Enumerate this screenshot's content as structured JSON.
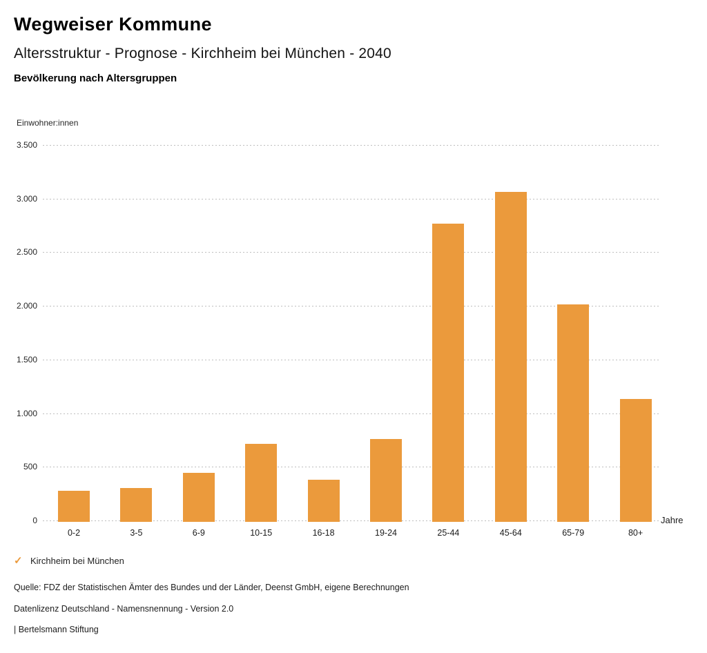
{
  "header": {
    "title": "Wegweiser Kommune",
    "subtitle": "Altersstruktur - Prognose - Kirchheim bei München - 2040",
    "subheading": "Bevölkerung nach Altersgruppen"
  },
  "chart_data": {
    "type": "bar",
    "title": "Bevölkerung nach Altersgruppen",
    "categories": [
      "0-2",
      "3-5",
      "6-9",
      "10-15",
      "16-18",
      "19-24",
      "25-44",
      "45-64",
      "65-79",
      "80+"
    ],
    "values": [
      290,
      315,
      460,
      730,
      390,
      770,
      2780,
      3075,
      2025,
      1145
    ],
    "series_name": "Kirchheim bei München",
    "xlabel": "Jahre",
    "ylabel": "Einwohner:innen",
    "ylim": [
      0,
      3500
    ],
    "ytick_step": 500,
    "yticks": [
      {
        "value": 3500,
        "label": "3.500"
      },
      {
        "value": 3000,
        "label": "3.000"
      },
      {
        "value": 2500,
        "label": "2.500"
      },
      {
        "value": 2000,
        "label": "2.000"
      },
      {
        "value": 1500,
        "label": "1.500"
      },
      {
        "value": 1000,
        "label": "1.000"
      },
      {
        "value": 500,
        "label": "500"
      },
      {
        "value": 0,
        "label": "0"
      }
    ],
    "grid": "horizontal-dotted",
    "legend_position": "bottom-left",
    "bar_color": "#EB9A3C"
  },
  "legend": {
    "icon": "checkmark-icon",
    "label": "Kirchheim bei München",
    "color": "#EB9A3C"
  },
  "footer": {
    "source": "Quelle: FDZ der Statistischen Ämter des Bundes und der Länder, Deenst GmbH, eigene Berechnungen",
    "license": "Datenlizenz Deutschland - Namensnennung - Version 2.0",
    "publisher": "| Bertelsmann Stiftung"
  }
}
